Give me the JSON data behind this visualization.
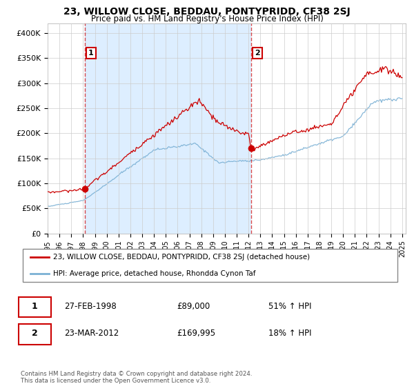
{
  "title": "23, WILLOW CLOSE, BEDDAU, PONTYPRIDD, CF38 2SJ",
  "subtitle": "Price paid vs. HM Land Registry's House Price Index (HPI)",
  "property_label": "23, WILLOW CLOSE, BEDDAU, PONTYPRIDD, CF38 2SJ (detached house)",
  "hpi_label": "HPI: Average price, detached house, Rhondda Cynon Taf",
  "sale1_num": "1",
  "sale1_date": "27-FEB-1998",
  "sale1_price": "£89,000",
  "sale1_pct": "51% ↑ HPI",
  "sale2_num": "2",
  "sale2_date": "23-MAR-2012",
  "sale2_price": "£169,995",
  "sale2_pct": "18% ↑ HPI",
  "footnote": "Contains HM Land Registry data © Crown copyright and database right 2024.\nThis data is licensed under the Open Government Licence v3.0.",
  "ylim": [
    0,
    420000
  ],
  "yticks": [
    0,
    50000,
    100000,
    150000,
    200000,
    250000,
    300000,
    350000,
    400000
  ],
  "ytick_labels": [
    "£0",
    "£50K",
    "£100K",
    "£150K",
    "£200K",
    "£250K",
    "£300K",
    "£350K",
    "£400K"
  ],
  "red_color": "#cc0000",
  "blue_color": "#7ab0d4",
  "shade_color": "#ddeeff",
  "bg_color": "#ffffff",
  "grid_color": "#cccccc",
  "sale1_year": 1998.15,
  "sale1_value": 89000,
  "sale2_year": 2012.22,
  "sale2_value": 169995
}
